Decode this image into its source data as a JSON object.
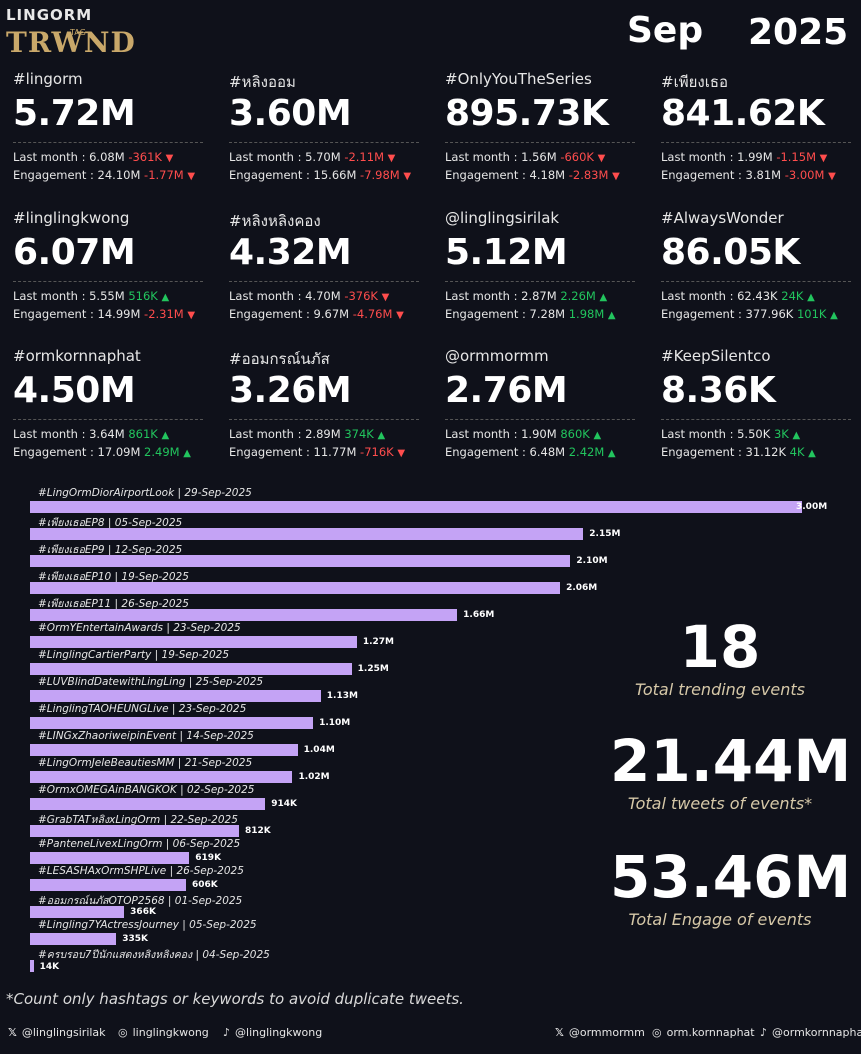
{
  "header": {
    "logo_top": "LINGORM",
    "logo_bottom": "TRWND",
    "logo_tag": "TAG",
    "month": "Sep",
    "year": "2025"
  },
  "cards": [
    {
      "tag": "#lingorm",
      "value": "5.72M",
      "last_month": "Last month : 6.08M",
      "lm_change": "-361K",
      "lm_dir": "down",
      "engagement": "Engagement : 24.10M",
      "eg_change": "-1.77M",
      "eg_dir": "down"
    },
    {
      "tag": "#หลิงออม",
      "value": "3.60M",
      "last_month": "Last month : 5.70M",
      "lm_change": "-2.11M",
      "lm_dir": "down",
      "engagement": "Engagement : 15.66M",
      "eg_change": "-7.98M",
      "eg_dir": "down"
    },
    {
      "tag": "#OnlyYouTheSeries",
      "value": "895.73K",
      "last_month": "Last month : 1.56M",
      "lm_change": "-660K",
      "lm_dir": "down",
      "engagement": "Engagement : 4.18M",
      "eg_change": "-2.83M",
      "eg_dir": "down"
    },
    {
      "tag": "#เพียงเธอ",
      "value": "841.62K",
      "last_month": "Last month : 1.99M",
      "lm_change": "-1.15M",
      "lm_dir": "down",
      "engagement": "Engagement : 3.81M",
      "eg_change": "-3.00M",
      "eg_dir": "down"
    },
    {
      "tag": "#linglingkwong",
      "value": "6.07M",
      "last_month": "Last month : 5.55M",
      "lm_change": "516K",
      "lm_dir": "up",
      "engagement": "Engagement : 14.99M",
      "eg_change": "-2.31M",
      "eg_dir": "down"
    },
    {
      "tag": "#หลิงหลิงคอง",
      "value": "4.32M",
      "last_month": "Last month : 4.70M",
      "lm_change": "-376K",
      "lm_dir": "down",
      "engagement": "Engagement : 9.67M",
      "eg_change": "-4.76M",
      "eg_dir": "down"
    },
    {
      "tag": "@linglingsirilak",
      "value": "5.12M",
      "last_month": "Last month : 2.87M",
      "lm_change": "2.26M",
      "lm_dir": "up",
      "engagement": "Engagement : 7.28M",
      "eg_change": "1.98M",
      "eg_dir": "up"
    },
    {
      "tag": "#AlwaysWonder",
      "value": "86.05K",
      "last_month": "Last month : 62.43K",
      "lm_change": "24K",
      "lm_dir": "up",
      "engagement": "Engagement : 377.96K",
      "eg_change": "101K",
      "eg_dir": "up"
    },
    {
      "tag": "#ormkornnaphat",
      "value": "4.50M",
      "last_month": "Last month : 3.64M",
      "lm_change": "861K",
      "lm_dir": "up",
      "engagement": "Engagement : 17.09M",
      "eg_change": "2.49M",
      "eg_dir": "up"
    },
    {
      "tag": "#ออมกรณ์นภัส",
      "value": "3.26M",
      "last_month": "Last month : 2.89M",
      "lm_change": "374K",
      "lm_dir": "up",
      "engagement": "Engagement : 11.77M",
      "eg_change": "-716K",
      "eg_dir": "down"
    },
    {
      "tag": "@ormmormm",
      "value": "2.76M",
      "last_month": "Last month : 1.90M",
      "lm_change": "860K",
      "lm_dir": "up",
      "engagement": "Engagement : 6.48M",
      "eg_change": "2.42M",
      "eg_dir": "up"
    },
    {
      "tag": "#KeepSilentco",
      "value": "8.36K",
      "last_month": "Last month : 5.50K",
      "lm_change": "3K",
      "lm_dir": "up",
      "engagement": "Engagement : 31.12K",
      "eg_change": "4K",
      "eg_dir": "up"
    }
  ],
  "chart_data": {
    "type": "bar",
    "orientation": "horizontal",
    "categories": [
      "#LingOrmDiorAirportLook | 29-Sep-2025",
      "#เพียงเธอEP8 | 05-Sep-2025",
      "#เพียงเธอEP9 | 12-Sep-2025",
      "#เพียงเธอEP10 | 19-Sep-2025",
      "#เพียงเธอEP11 | 26-Sep-2025",
      "#OrmYEntertainAwards | 23-Sep-2025",
      "#LinglingCartierParty | 19-Sep-2025",
      "#LUVBlindDatewithLingLing | 25-Sep-2025",
      "#LinglingTAOHEUNGLive | 23-Sep-2025",
      "#LINGxZhaoriweipinEvent | 14-Sep-2025",
      "#LingOrmJeleBeautiesMM | 21-Sep-2025",
      "#OrmxOMEGAinBANGKOK | 02-Sep-2025",
      "#GrabTATหลิงxLingOrm | 22-Sep-2025",
      "#PanteneLivexLingOrm | 06-Sep-2025",
      "#LESASHAxOrmSHPLive | 26-Sep-2025",
      "#ออมกรณ์นภัสOTOP2568 | 01-Sep-2025",
      "#Lingling7YActressJourney | 05-Sep-2025",
      "#ครบรอบ7ปีนักแสดงหลิงหลิงคอง | 04-Sep-2025"
    ],
    "values": [
      3000000,
      2150000,
      2100000,
      2060000,
      1660000,
      1270000,
      1250000,
      1130000,
      1100000,
      1040000,
      1020000,
      914000,
      812000,
      619000,
      606000,
      366000,
      335000,
      14000
    ],
    "value_labels": [
      "3.00M",
      "2.15M",
      "2.10M",
      "2.06M",
      "1.66M",
      "1.27M",
      "1.25M",
      "1.13M",
      "1.10M",
      "1.04M",
      "1.02M",
      "914K",
      "812K",
      "619K",
      "606K",
      "366K",
      "335K",
      "14K"
    ],
    "bar_color": "#c4a3f5"
  },
  "stats": {
    "total_events": "18",
    "total_events_label": "Total trending events",
    "total_tweets": "21.44M",
    "total_tweets_label": "Total tweets of events*",
    "total_engage": "53.46M",
    "total_engage_label": "Total Engage of events"
  },
  "footnote": "*Count only hashtags or keywords to avoid duplicate tweets.",
  "social": [
    {
      "icon": "x-icon",
      "glyph": "𝕏",
      "handle": "@linglingsirilak"
    },
    {
      "icon": "instagram-icon",
      "glyph": "◎",
      "handle": "linglingkwong"
    },
    {
      "icon": "tiktok-icon",
      "glyph": "♪",
      "handle": "@linglingkwong"
    },
    {
      "icon": "x-icon",
      "glyph": "𝕏",
      "handle": "@ormmormm"
    },
    {
      "icon": "instagram-icon",
      "glyph": "◎",
      "handle": "orm.kornnaphat"
    },
    {
      "icon": "tiktok-icon",
      "glyph": "♪",
      "handle": "@ormkornnaphat"
    }
  ],
  "colors": {
    "background": "#0f111a",
    "up": "#22c55e",
    "down": "#ff4d4d",
    "stat_label": "#d6c8a8"
  }
}
